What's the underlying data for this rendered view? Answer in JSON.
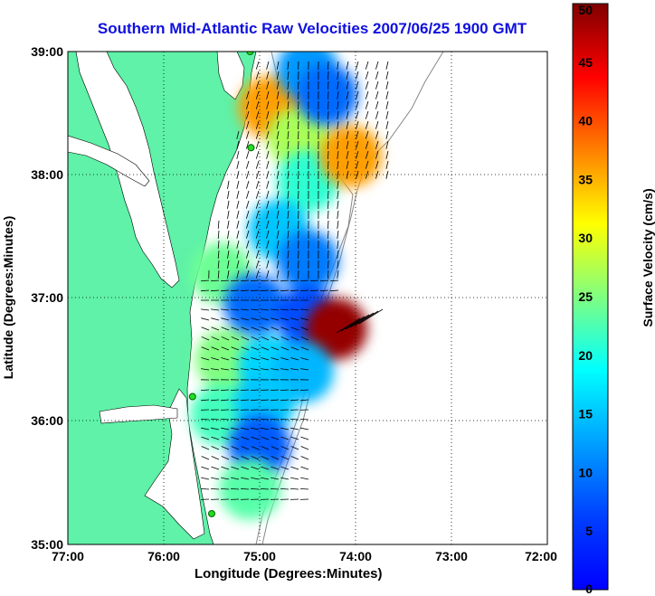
{
  "title": "Southern Mid-Atlantic Raw Velocities 2007/06/25 1900 GMT",
  "xlabel": "Longitude (Degrees:Minutes)",
  "ylabel": "Latitude (Degrees:Minutes)",
  "x_ticks": [
    "77:00",
    "76:00",
    "75:00",
    "74:00",
    "73:00",
    "72:00"
  ],
  "y_ticks": [
    "39:00",
    "38:00",
    "37:00",
    "36:00",
    "35:00"
  ],
  "colorbar": {
    "label": "Surface Velocity (cm/s)",
    "ticks": [
      "50",
      "45",
      "40",
      "35",
      "30",
      "25",
      "20",
      "15",
      "10",
      "5",
      "0"
    ],
    "range": [
      0,
      50
    ],
    "colormap": "jet"
  },
  "map": {
    "lon_range": [
      -77,
      -72
    ],
    "lat_range": [
      35,
      39
    ],
    "land_color": "#5ff2a8",
    "grid": "dotted",
    "stations": [
      {
        "lon": -75.1,
        "lat": 39.0
      },
      {
        "lon": -75.09,
        "lat": 38.22
      },
      {
        "lon": -75.7,
        "lat": 36.2
      },
      {
        "lon": -75.5,
        "lat": 35.25
      }
    ]
  },
  "velocity_field": {
    "regions": [
      {
        "lon": -74.9,
        "lat": 38.55,
        "speed": 36
      },
      {
        "lon": -74.6,
        "lat": 38.3,
        "speed": 27
      },
      {
        "lon": -74.5,
        "lat": 37.95,
        "speed": 21
      },
      {
        "lon": -74.8,
        "lat": 37.55,
        "speed": 15
      },
      {
        "lon": -74.5,
        "lat": 37.3,
        "speed": 10
      },
      {
        "lon": -75.4,
        "lat": 37.2,
        "speed": 24
      },
      {
        "lon": -75.05,
        "lat": 36.95,
        "speed": 9
      },
      {
        "lon": -74.5,
        "lat": 36.85,
        "speed": 7
      },
      {
        "lon": -74.2,
        "lat": 36.75,
        "speed": 49
      },
      {
        "lon": -75.35,
        "lat": 36.5,
        "speed": 25
      },
      {
        "lon": -74.9,
        "lat": 36.45,
        "speed": 16
      },
      {
        "lon": -74.55,
        "lat": 36.4,
        "speed": 14
      },
      {
        "lon": -75.4,
        "lat": 36.05,
        "speed": 22
      },
      {
        "lon": -74.95,
        "lat": 36.15,
        "speed": 15
      },
      {
        "lon": -75.0,
        "lat": 35.8,
        "speed": 8
      },
      {
        "lon": -75.1,
        "lat": 35.45,
        "speed": 23
      },
      {
        "lon": -74.05,
        "lat": 38.15,
        "speed": 36
      },
      {
        "lon": -74.5,
        "lat": 38.85,
        "speed": 12
      },
      {
        "lon": -74.3,
        "lat": 38.65,
        "speed": 9
      }
    ]
  }
}
